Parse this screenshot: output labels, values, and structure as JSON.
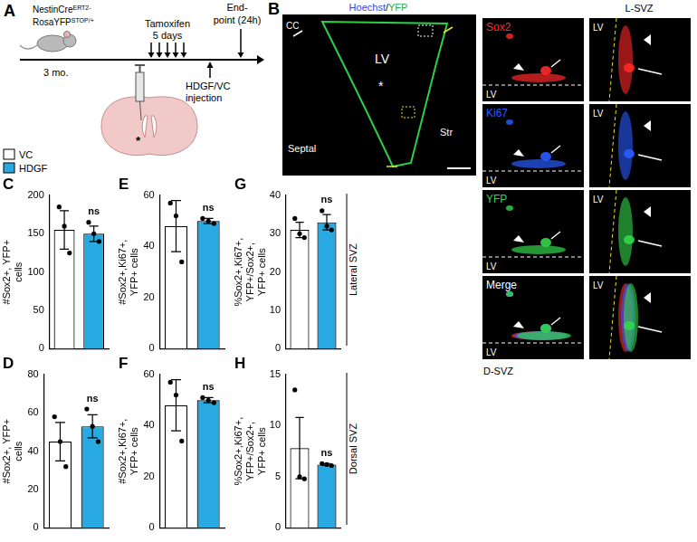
{
  "figure_a": {
    "label": "A",
    "strain": [
      {
        "text": "NestinCre",
        "sup": "ERT2-"
      },
      {
        "text": "RosaYFP",
        "sup": "STOP/+"
      }
    ],
    "age": "3 mo.",
    "treatment": [
      "Tamoxifen",
      "5 days"
    ],
    "injection": [
      "HDGF/VC",
      "injection"
    ],
    "endpoint": [
      "End-",
      "point (24h)"
    ],
    "target_mark": "*"
  },
  "figure_b": {
    "label": "B",
    "overview_title": [
      "Hoechst",
      "/",
      "YFP"
    ],
    "overview_labels": {
      "cc": "CC",
      "ventricle": "LV",
      "septal": "Septal",
      "striatum": "Str",
      "mark": "*"
    },
    "channels": [
      "Sox2",
      "Ki67",
      "YFP",
      "Merge"
    ],
    "ventricle_label": "LV",
    "regions": [
      "D-SVZ",
      "L-SVZ"
    ]
  },
  "group_legend": [
    {
      "name": "VC",
      "color": "#ffffff"
    },
    {
      "name": "HDGF",
      "color": "#29a9e1"
    }
  ],
  "chart_data": [
    {
      "panel": "C",
      "type": "bar",
      "categories": [
        "VC",
        "HDGF"
      ],
      "colors": [
        "#ffffff",
        "#29a9e1"
      ],
      "values": [
        155,
        150
      ],
      "errors": [
        25,
        10
      ],
      "points": [
        [
          185,
          160,
          125
        ],
        [
          165,
          150,
          140
        ]
      ],
      "annotation": "ns",
      "y_label": [
        "#Sox2+, YFP+",
        "cells"
      ],
      "ylim": [
        0,
        200
      ],
      "yticks": [
        0,
        50,
        100,
        150,
        200
      ],
      "grid": false,
      "tick_labels": "y"
    },
    {
      "panel": "D",
      "type": "bar",
      "categories": [
        "VC",
        "HDGF"
      ],
      "colors": [
        "#ffffff",
        "#29a9e1"
      ],
      "values": [
        45,
        53
      ],
      "errors": [
        10,
        6
      ],
      "points": [
        [
          58,
          45,
          32
        ],
        [
          62,
          53,
          45
        ]
      ],
      "annotation": "ns",
      "y_label": [
        "#Sox2+, YFP+",
        "cells"
      ],
      "ylim": [
        0,
        80
      ],
      "yticks": [
        0,
        20,
        40,
        60,
        80
      ],
      "grid": false,
      "tick_labels": "y"
    },
    {
      "panel": "E",
      "type": "bar",
      "categories": [
        "VC",
        "HDGF"
      ],
      "colors": [
        "#ffffff",
        "#29a9e1"
      ],
      "values": [
        48,
        50
      ],
      "errors": [
        10,
        1
      ],
      "points": [
        [
          57,
          52,
          34
        ],
        [
          51,
          50,
          49
        ]
      ],
      "annotation": "ns",
      "y_label": [
        "#Sox2+,Ki67+,",
        "YFP+ cells"
      ],
      "ylim": [
        0,
        60
      ],
      "yticks": [
        0,
        20,
        40,
        60
      ],
      "grid": false,
      "tick_labels": "y"
    },
    {
      "panel": "F",
      "type": "bar",
      "categories": [
        "VC",
        "HDGF"
      ],
      "colors": [
        "#ffffff",
        "#29a9e1"
      ],
      "values": [
        48,
        50
      ],
      "errors": [
        10,
        1
      ],
      "points": [
        [
          57,
          52,
          34
        ],
        [
          51,
          50,
          49
        ]
      ],
      "annotation": "ns",
      "y_label": [
        "#Sox2+,Ki67+,",
        "YFP+ cells"
      ],
      "ylim": [
        0,
        60
      ],
      "yticks": [
        0,
        20,
        40,
        60
      ],
      "grid": false,
      "tick_labels": "y"
    },
    {
      "panel": "G",
      "type": "bar",
      "categories": [
        "VC",
        "HDGF"
      ],
      "colors": [
        "#ffffff",
        "#29a9e1"
      ],
      "values": [
        31,
        33
      ],
      "errors": [
        2,
        2
      ],
      "points": [
        [
          34,
          30,
          29
        ],
        [
          36,
          32,
          31
        ]
      ],
      "annotation": "ns",
      "y_label": [
        "%Sox2+,Ki67+,",
        "YFP+/Sox2+,",
        "YFP+ cells"
      ],
      "ylim": [
        0,
        40
      ],
      "yticks": [
        0,
        10,
        20,
        30,
        40
      ],
      "grid": false,
      "tick_labels": "y",
      "side_label": "Lateral SVZ"
    },
    {
      "panel": "H",
      "type": "bar",
      "categories": [
        "VC",
        "HDGF"
      ],
      "colors": [
        "#ffffff",
        "#29a9e1"
      ],
      "values": [
        7.8,
        6.2
      ],
      "errors": [
        3,
        0.1
      ],
      "points": [
        [
          13.5,
          5,
          4.8
        ],
        [
          6.3,
          6.2,
          6.1
        ]
      ],
      "annotation": "ns",
      "y_label": [
        "%Sox2+,Ki67+,",
        "YFP+/Sox2+,",
        "YFP+ cells"
      ],
      "ylim": [
        0,
        15
      ],
      "yticks": [
        0,
        5,
        10,
        15
      ],
      "grid": false,
      "tick_labels": "y",
      "side_label": "Dorsal SVZ"
    }
  ]
}
